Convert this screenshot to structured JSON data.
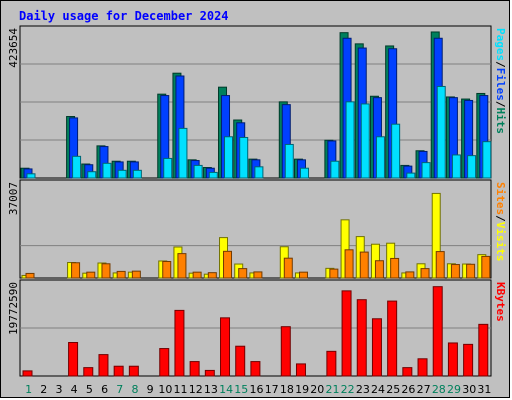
{
  "chart_data": {
    "type": "bar",
    "title": "Daily usage for December 2024",
    "days": [
      "1",
      "2",
      "3",
      "4",
      "5",
      "6",
      "7",
      "8",
      "9",
      "10",
      "11",
      "12",
      "13",
      "14",
      "15",
      "16",
      "17",
      "18",
      "19",
      "20",
      "21",
      "22",
      "23",
      "24",
      "25",
      "26",
      "27",
      "28",
      "29",
      "30",
      "31"
    ],
    "weekend_days": [
      "1",
      "7",
      "8",
      "14",
      "15",
      "21",
      "22",
      "28",
      "29"
    ],
    "panels": [
      {
        "name": "hits-files-pages",
        "scale_label": "423654",
        "max": 423654,
        "right_labels": [
          "Pages",
          "/",
          "Files",
          "/",
          "Hits"
        ],
        "series": [
          {
            "name": "Hits",
            "color": "#00805c",
            "values": [
              28000,
              0,
              0,
              176000,
              40000,
              92000,
              48000,
              48000,
              0,
              240000,
              300000,
              52000,
              30000,
              260000,
              166000,
              54000,
              0,
              218000,
              54000,
              0,
              108000,
              416000,
              384000,
              234000,
              378000,
              36000,
              78000,
              418000,
              232000,
              226000,
              242000
            ]
          },
          {
            "name": "Files",
            "color": "#0040ff",
            "values": [
              26000,
              0,
              0,
              172000,
              38000,
              90000,
              46000,
              46000,
              0,
              236000,
              292000,
              50000,
              28000,
              236000,
              158000,
              52000,
              0,
              210000,
              52000,
              0,
              106000,
              400000,
              372000,
              230000,
              370000,
              34000,
              76000,
              400000,
              230000,
              222000,
              236000
            ]
          },
          {
            "name": "Pages",
            "color": "#00e0ff",
            "values": [
              12000,
              0,
              0,
              62000,
              18000,
              42000,
              22000,
              22000,
              0,
              56000,
              142000,
              36000,
              16000,
              118000,
              116000,
              32000,
              0,
              96000,
              28000,
              0,
              48000,
              218000,
              212000,
              118000,
              154000,
              14000,
              44000,
              262000,
              66000,
              64000,
              104000
            ]
          }
        ]
      },
      {
        "name": "visits-sites",
        "scale_label": "37007",
        "max": 37007,
        "right_labels": [
          "Sites",
          "/",
          "Visits"
        ],
        "series": [
          {
            "name": "Visits",
            "color": "#ffff00",
            "values": [
              1000,
              0,
              0,
              6100,
              1900,
              5900,
              2000,
              2300,
              0,
              6700,
              12200,
              1900,
              1500,
              15900,
              5500,
              2000,
              0,
              12300,
              2000,
              0,
              3800,
              22900,
              16300,
              13300,
              13700,
              2000,
              5600,
              33300,
              5600,
              5500,
              9200
            ]
          },
          {
            "name": "Sites",
            "color": "#ff8000",
            "values": [
              1800,
              0,
              0,
              6000,
              2300,
              5600,
              2600,
              2700,
              0,
              6500,
              9600,
              2300,
              2100,
              10500,
              3700,
              2400,
              0,
              7800,
              2300,
              0,
              3500,
              11100,
              10200,
              6800,
              7700,
              2400,
              3700,
              10400,
              5300,
              5400,
              8500
            ]
          }
        ]
      },
      {
        "name": "kbytes",
        "scale_label": "19772590",
        "max": 19772590,
        "right_labels": [
          "KBytes"
        ],
        "series": [
          {
            "name": "KBytes",
            "color": "#ff0000",
            "values": [
              1100000,
              0,
              0,
              7200000,
              1800000,
              4600000,
              2100000,
              2100000,
              0,
              5900000,
              14100000,
              3100000,
              1200000,
              12500000,
              6400000,
              3100000,
              0,
              10600000,
              2600000,
              0,
              5300000,
              18300000,
              16400000,
              12300000,
              16100000,
              1800000,
              3700000,
              19200000,
              7100000,
              6800000,
              11100000
            ]
          }
        ]
      }
    ]
  }
}
